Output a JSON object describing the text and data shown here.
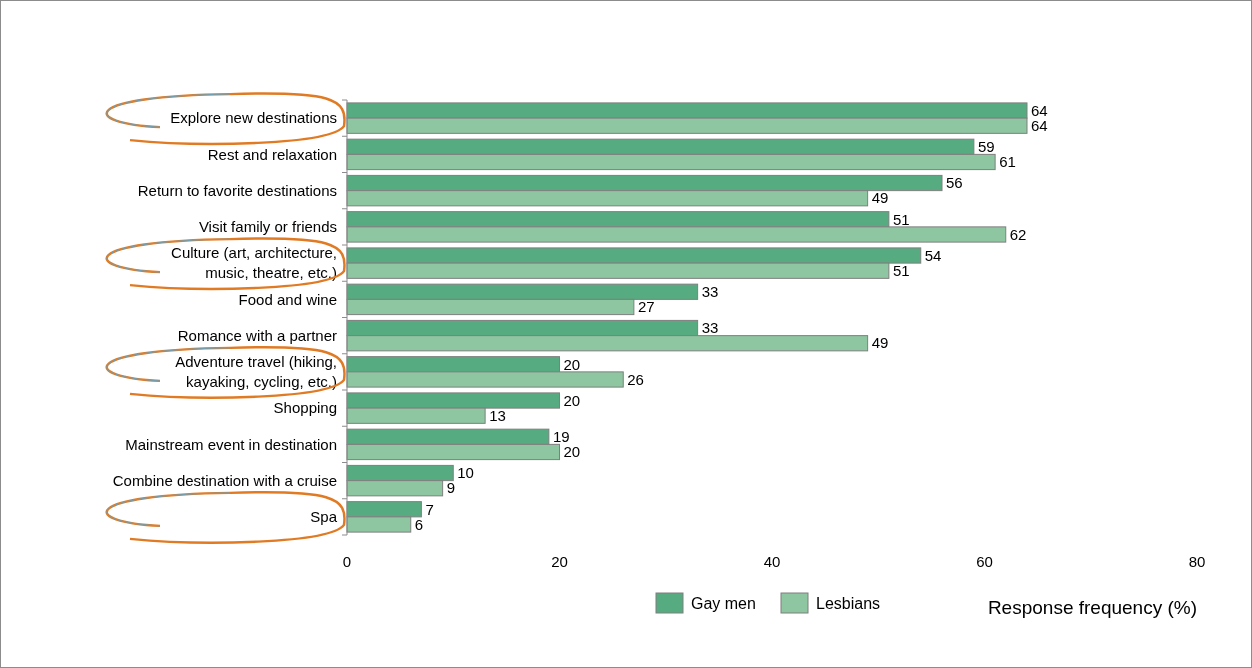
{
  "chart_data": {
    "type": "bar",
    "orientation": "horizontal",
    "xlabel": "Response frequency (%)",
    "categories": [
      "Explore new destinations",
      "Rest and relaxation",
      "Return to favorite destinations",
      "Visit family or friends",
      "Culture (art, architecture,\nmusic, theatre, etc.)",
      "Food and wine",
      "Romance with a partner",
      "Adventure travel (hiking,\nkayaking, cycling, etc.)",
      "Shopping",
      "Mainstream event in destination",
      "Combine destination with a cruise",
      "Spa"
    ],
    "series": [
      {
        "name": "Gay men",
        "color": "#57ab80",
        "values": [
          64,
          59,
          56,
          51,
          54,
          33,
          33,
          20,
          20,
          19,
          10,
          7
        ]
      },
      {
        "name": "Lesbians",
        "color": "#8dc6a0",
        "values": [
          64,
          61,
          49,
          62,
          51,
          27,
          49,
          26,
          13,
          20,
          9,
          6
        ]
      }
    ],
    "xlim": [
      0,
      80
    ],
    "xticks": [
      0,
      20,
      40,
      60,
      80
    ],
    "data_labels": true,
    "legend": "bottom",
    "grid": false
  }
}
